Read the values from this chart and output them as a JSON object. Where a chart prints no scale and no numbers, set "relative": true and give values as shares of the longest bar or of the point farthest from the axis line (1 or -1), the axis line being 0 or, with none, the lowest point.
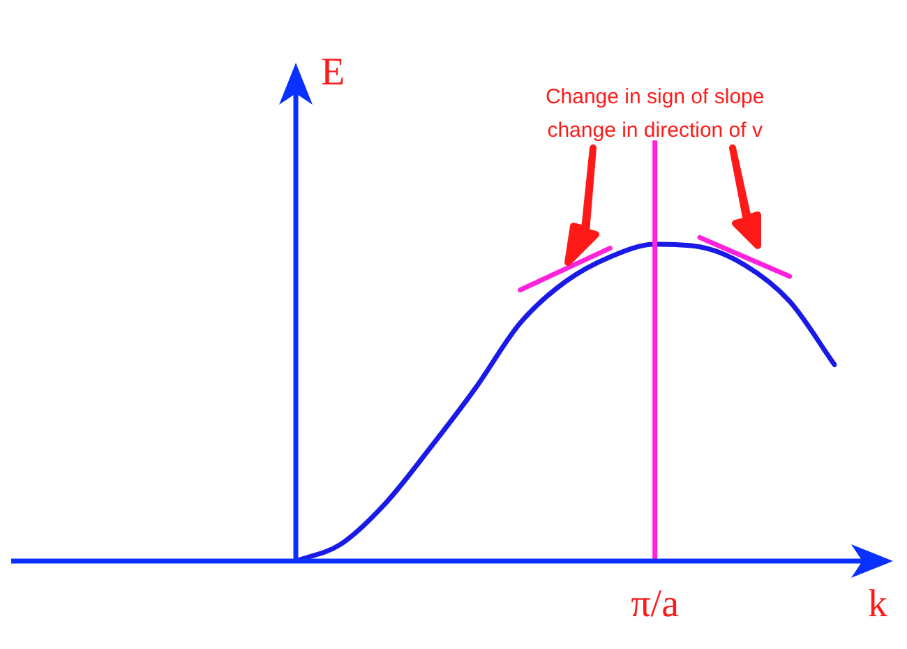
{
  "chart_data": {
    "type": "line",
    "relative": true,
    "xlabel": "k",
    "ylabel": "E",
    "marker": "none",
    "grid": false,
    "legend": false,
    "categories": [
      null,
      null,
      null,
      null,
      null,
      null,
      null,
      null,
      null,
      null,
      null,
      null,
      null
    ],
    "annotations": [
      "Change in sign of slope",
      "change in direction of v",
      "π/a"
    ],
    "series": [
      {
        "type": "line",
        "color": "#1a1ae6",
        "values": [
          0,
          0.052,
          0.179,
          0.351,
          0.534,
          0.736,
          0.863,
          0.94,
          0.979,
          0.971,
          0.915,
          0.803,
          0.607
        ]
      },
      {
        "type": "line",
        "color": "#ff22dd",
        "values": [
          null,
          null,
          null,
          null,
          null,
          0.838,
          null,
          0.967,
          null,
          null,
          null,
          null,
          null
        ]
      },
      {
        "type": "line",
        "color": "#ff22dd",
        "values": [
          null,
          null,
          null,
          null,
          null,
          null,
          null,
          null,
          null,
          1,
          null,
          0.88,
          null
        ]
      }
    ]
  }
}
